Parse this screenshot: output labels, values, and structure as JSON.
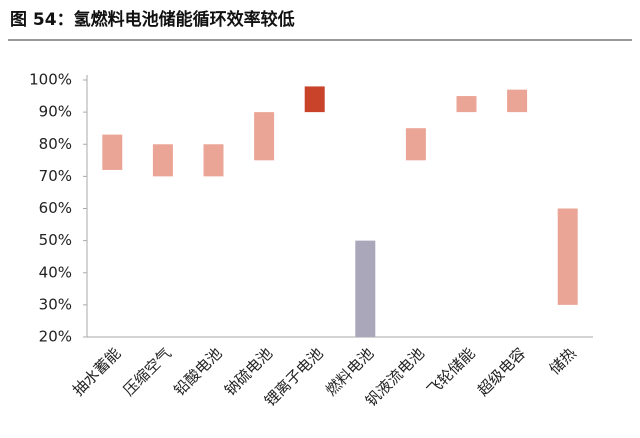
{
  "chart_data": {
    "type": "floating-bar",
    "title": "图 54：氢燃料电池储能循环效率较低",
    "categories": [
      "抽水蓄能",
      "压缩空气",
      "铅酸电池",
      "钠硫电池",
      "锂离子电池",
      "燃料电池",
      "钒液流电池",
      "飞轮储能",
      "超级电容",
      "储热"
    ],
    "low": [
      72,
      70,
      70,
      75,
      90,
      20,
      75,
      90,
      90,
      30
    ],
    "high": [
      83,
      80,
      80,
      90,
      98,
      50,
      85,
      95,
      97,
      60
    ],
    "colors": [
      "#eba596",
      "#eba596",
      "#eba596",
      "#eba596",
      "#c9432b",
      "#a9a7b9",
      "#eba596",
      "#eba596",
      "#eba596",
      "#eba596"
    ],
    "ylim": [
      20,
      100
    ],
    "yticks": [
      {
        "value": 20,
        "label": "20%"
      },
      {
        "value": 30,
        "label": "30%"
      },
      {
        "value": 40,
        "label": "40%"
      },
      {
        "value": 50,
        "label": "50%"
      },
      {
        "value": 60,
        "label": "60%"
      },
      {
        "value": 70,
        "label": "70%"
      },
      {
        "value": 80,
        "label": "80%"
      },
      {
        "value": 90,
        "label": "90%"
      },
      {
        "value": 100,
        "label": "100%"
      }
    ]
  }
}
